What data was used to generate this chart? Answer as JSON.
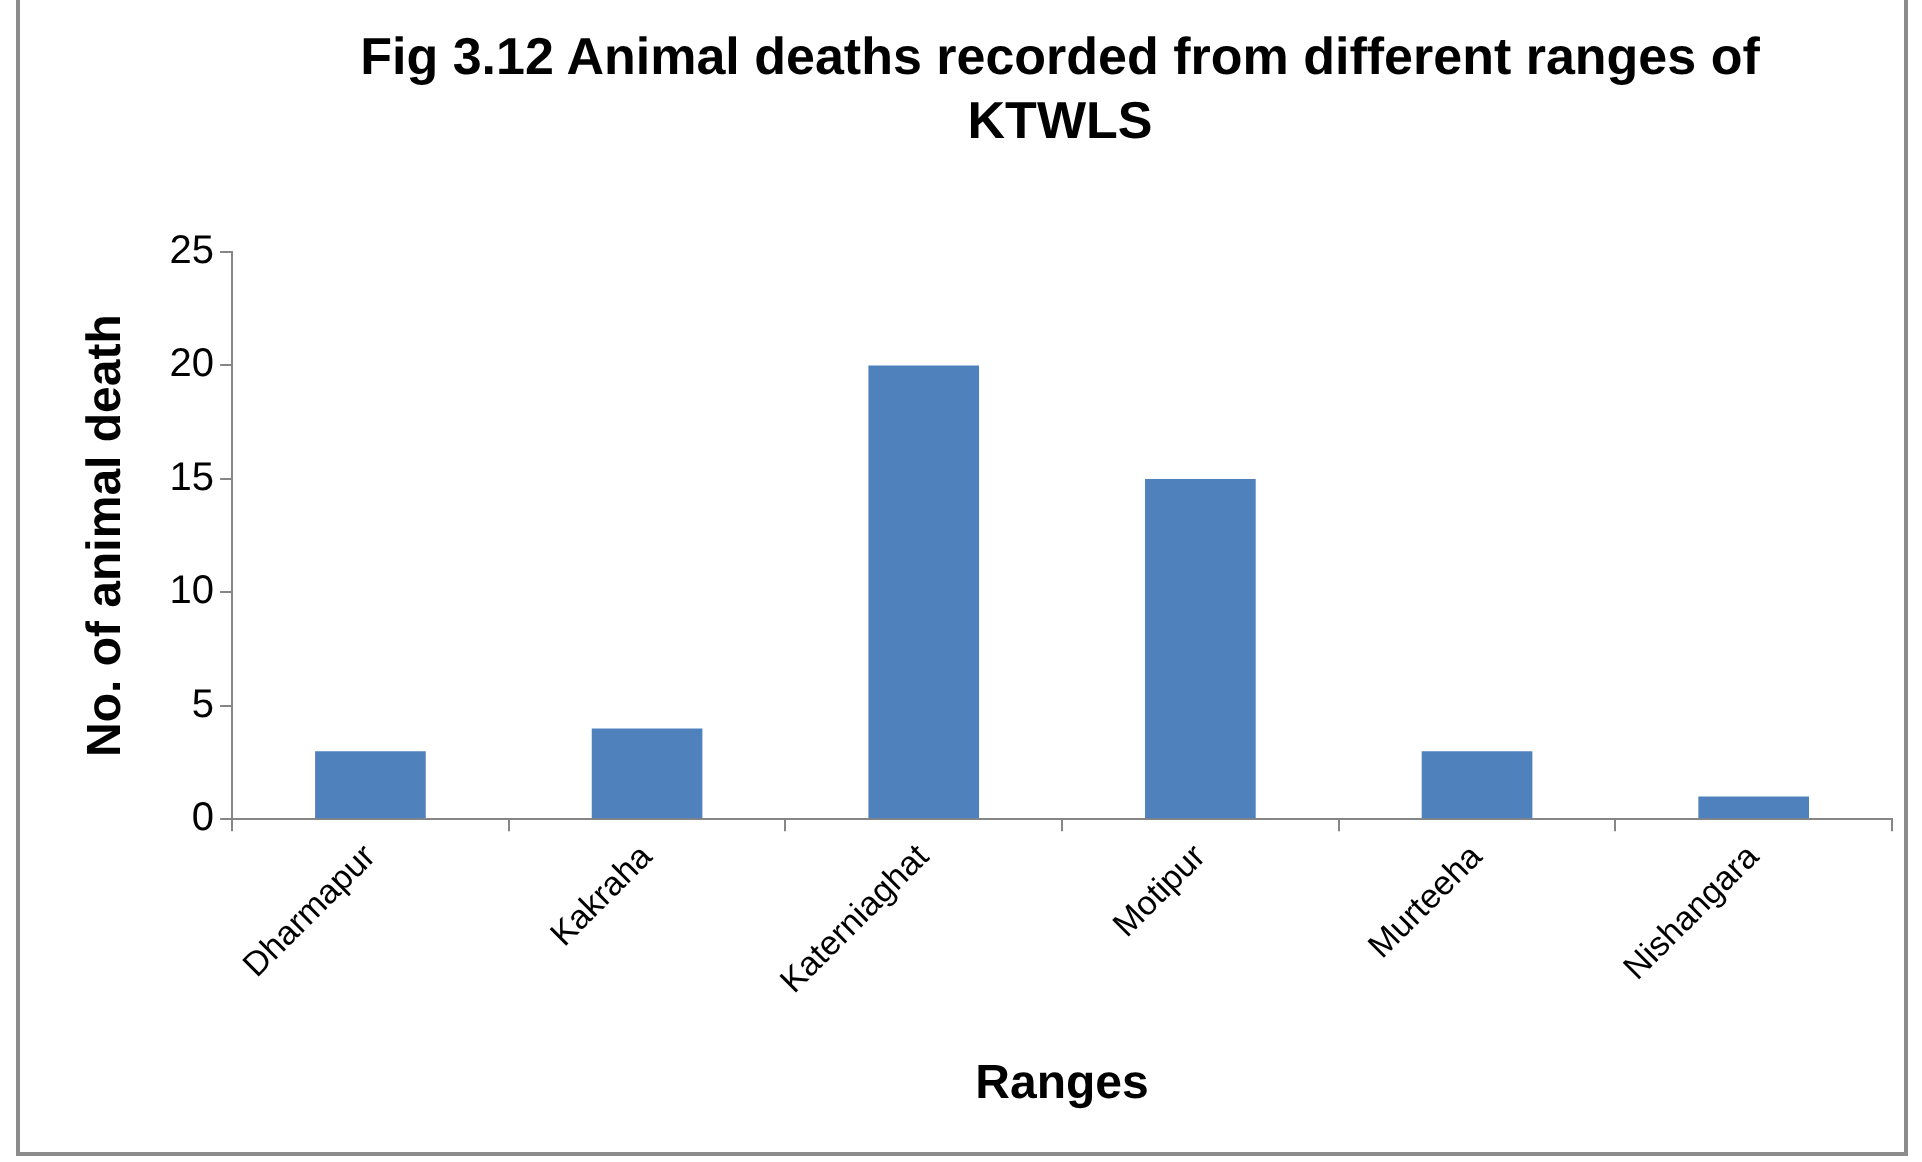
{
  "chart_data": {
    "type": "bar",
    "title": "Fig 3.12 Animal deaths recorded from different ranges of KTWLS",
    "xlabel": "Ranges",
    "ylabel": "No. of animal death",
    "categories": [
      "Dharmapur",
      "Kakraha",
      "Katerniaghat",
      "Motipur",
      "Murteeha",
      "Nishangara"
    ],
    "values": [
      3,
      4,
      20,
      15,
      3,
      1
    ],
    "color": "#4f81bd",
    "ylim": [
      0,
      25
    ],
    "yticks": [
      0,
      5,
      10,
      15,
      20,
      25
    ],
    "grid": false,
    "legend": false
  }
}
